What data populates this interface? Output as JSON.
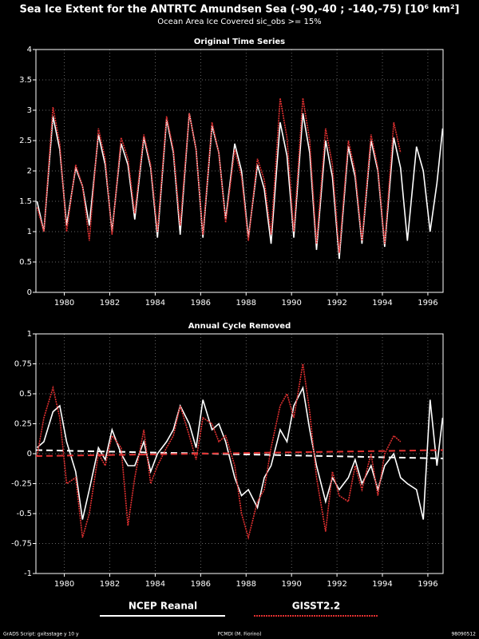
{
  "header": {
    "title": "Sea Ice Extent for the ANTRTC Amundsen Sea (-90,-40 ; -140,-75) [10⁶ km²]",
    "subtitle": "Ocean Area Ice Covered sic_obs >= 15%"
  },
  "footer": {
    "left": "GrADS Script: gxitsstage y 10 y",
    "center": "PCMDI (M. Fiorino)",
    "right": "98090512"
  },
  "chart_data": [
    {
      "type": "line",
      "title": "Original Time Series",
      "grid": true,
      "x": [
        1978.8,
        1979.1,
        1979.5,
        1979.8,
        1980.1,
        1980.5,
        1980.8,
        1981.1,
        1981.5,
        1981.8,
        1982.1,
        1982.5,
        1982.8,
        1983.1,
        1983.5,
        1983.8,
        1984.1,
        1984.5,
        1984.8,
        1985.1,
        1985.5,
        1985.8,
        1986.1,
        1986.5,
        1986.8,
        1987.1,
        1987.5,
        1987.8,
        1988.1,
        1988.5,
        1988.8,
        1989.1,
        1989.5,
        1989.8,
        1990.1,
        1990.5,
        1990.8,
        1991.1,
        1991.5,
        1991.8,
        1992.1,
        1992.5,
        1992.8,
        1993.1,
        1993.5,
        1993.8,
        1994.1,
        1994.5,
        1994.8,
        1995.1,
        1995.5,
        1995.8,
        1996.1,
        1996.4,
        1996.65
      ],
      "xlim": [
        1978.75,
        1996.67
      ],
      "xticks": [
        1980,
        1982,
        1984,
        1986,
        1988,
        1990,
        1992,
        1994,
        1996
      ],
      "ylim": [
        0,
        4
      ],
      "yticks": [
        0,
        0.5,
        1,
        1.5,
        2,
        2.5,
        3,
        3.5,
        4
      ],
      "series": [
        {
          "name": "NCEP Reanal",
          "color": "#ffffff",
          "values": [
            1.5,
            1.0,
            2.9,
            2.35,
            1.1,
            2.05,
            1.75,
            1.1,
            2.6,
            2.1,
            1.0,
            2.45,
            2.1,
            1.2,
            2.55,
            2.05,
            0.9,
            2.85,
            2.3,
            0.95,
            2.95,
            2.35,
            0.9,
            2.75,
            2.3,
            1.2,
            2.45,
            2.0,
            0.9,
            2.1,
            1.7,
            0.8,
            2.8,
            2.25,
            0.9,
            2.95,
            2.3,
            0.7,
            2.5,
            1.9,
            0.55,
            2.4,
            1.9,
            0.8,
            2.5,
            2.0,
            0.75,
            2.55,
            2.05,
            0.85,
            2.4,
            2.0,
            1.0,
            1.8,
            2.7
          ]
        },
        {
          "name": "GISST2.2",
          "color": "#e03030",
          "values": [
            1.4,
            1.0,
            3.05,
            2.45,
            1.0,
            2.1,
            1.75,
            0.85,
            2.7,
            2.2,
            0.95,
            2.55,
            2.2,
            1.3,
            2.6,
            2.1,
            1.0,
            2.9,
            2.35,
            1.1,
            2.95,
            2.35,
            0.95,
            2.8,
            2.3,
            1.15,
            2.35,
            1.9,
            0.85,
            2.2,
            1.85,
            0.95,
            3.2,
            2.55,
            1.0,
            3.2,
            2.5,
            0.8,
            2.7,
            2.1,
            0.65,
            2.5,
            2.0,
            0.85,
            2.6,
            2.05,
            0.8,
            2.8,
            2.3,
            null,
            null,
            null,
            null,
            null,
            null
          ]
        }
      ]
    },
    {
      "type": "line",
      "title": "Annual Cycle Removed",
      "grid": true,
      "x": [
        1978.8,
        1979.1,
        1979.5,
        1979.8,
        1980.1,
        1980.5,
        1980.8,
        1981.1,
        1981.5,
        1981.8,
        1982.1,
        1982.5,
        1982.8,
        1983.1,
        1983.5,
        1983.8,
        1984.1,
        1984.5,
        1984.8,
        1985.1,
        1985.5,
        1985.8,
        1986.1,
        1986.5,
        1986.8,
        1987.1,
        1987.5,
        1987.8,
        1988.1,
        1988.5,
        1988.8,
        1989.1,
        1989.5,
        1989.8,
        1990.1,
        1990.5,
        1990.8,
        1991.1,
        1991.5,
        1991.8,
        1992.1,
        1992.5,
        1992.8,
        1993.1,
        1993.5,
        1993.8,
        1994.1,
        1994.5,
        1994.8,
        1995.1,
        1995.5,
        1995.8,
        1996.1,
        1996.4,
        1996.65
      ],
      "xlim": [
        1978.75,
        1996.67
      ],
      "xticks": [
        1980,
        1982,
        1984,
        1986,
        1988,
        1990,
        1992,
        1994,
        1996
      ],
      "ylim": [
        -1,
        1
      ],
      "yticks": [
        -1,
        -0.75,
        -0.5,
        -0.25,
        0,
        0.25,
        0.5,
        0.75,
        1
      ],
      "series": [
        {
          "name": "NCEP Reanal",
          "color": "#ffffff",
          "trend": [
            0.03,
            -0.04
          ],
          "values": [
            0.05,
            0.1,
            0.35,
            0.4,
            0.1,
            -0.15,
            -0.55,
            -0.3,
            0.05,
            -0.05,
            0.2,
            0.0,
            -0.1,
            -0.1,
            0.1,
            -0.15,
            0.0,
            0.1,
            0.2,
            0.4,
            0.25,
            0.05,
            0.45,
            0.2,
            0.25,
            0.1,
            -0.2,
            -0.35,
            -0.3,
            -0.45,
            -0.2,
            -0.1,
            0.2,
            0.1,
            0.4,
            0.55,
            0.2,
            -0.1,
            -0.4,
            -0.2,
            -0.3,
            -0.2,
            -0.05,
            -0.25,
            -0.1,
            -0.3,
            -0.1,
            0.0,
            -0.2,
            -0.25,
            -0.3,
            -0.55,
            0.45,
            -0.1,
            0.3
          ]
        },
        {
          "name": "GISST2.2",
          "color": "#e03030",
          "trend": [
            -0.02,
            0.03
          ],
          "values": [
            -0.02,
            0.3,
            0.55,
            0.3,
            -0.25,
            -0.2,
            -0.7,
            -0.5,
            0.0,
            -0.1,
            0.15,
            0.05,
            -0.6,
            -0.2,
            0.2,
            -0.25,
            -0.1,
            0.05,
            0.15,
            0.4,
            0.15,
            -0.05,
            0.3,
            0.25,
            0.1,
            0.15,
            -0.1,
            -0.5,
            -0.7,
            -0.4,
            -0.3,
            0.05,
            0.4,
            0.5,
            0.3,
            0.75,
            0.35,
            -0.2,
            -0.65,
            -0.15,
            -0.35,
            -0.4,
            -0.1,
            -0.3,
            0.0,
            -0.35,
            0.0,
            0.15,
            0.1,
            null,
            null,
            null,
            null,
            null,
            null
          ]
        }
      ]
    }
  ]
}
